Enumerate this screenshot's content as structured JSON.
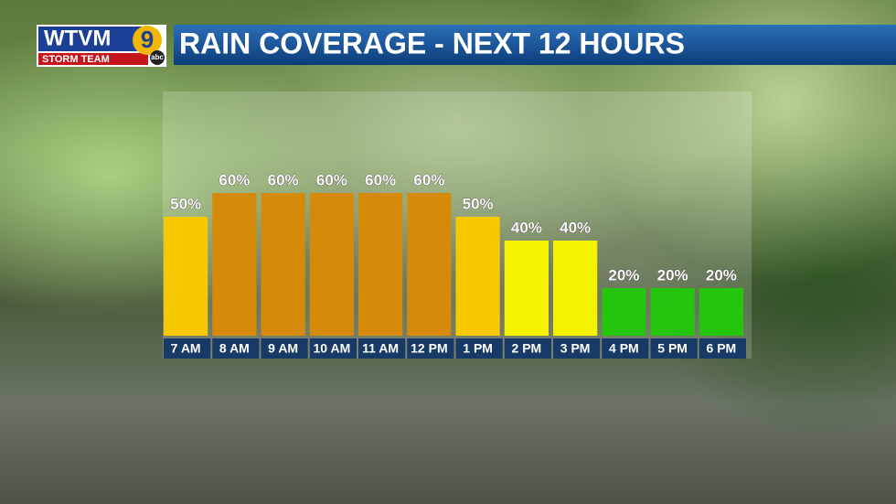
{
  "logo": {
    "station": "WTVM",
    "channel": "9",
    "network": "abc",
    "team": "STORM TEAM"
  },
  "chart_data": {
    "type": "bar",
    "title": "RAIN COVERAGE - NEXT 12 HOURS",
    "categories": [
      "7 AM",
      "8 AM",
      "9 AM",
      "10 AM",
      "11 AM",
      "12 PM",
      "1 PM",
      "2 PM",
      "3 PM",
      "4 PM",
      "5 PM",
      "6 PM"
    ],
    "values": [
      50,
      60,
      60,
      60,
      60,
      60,
      50,
      40,
      40,
      20,
      20,
      20
    ],
    "value_labels": [
      "50%",
      "60%",
      "60%",
      "60%",
      "60%",
      "60%",
      "50%",
      "40%",
      "40%",
      "20%",
      "20%",
      "20%"
    ],
    "colors": [
      "#f7c800",
      "#d58a0a",
      "#d58a0a",
      "#d58a0a",
      "#d58a0a",
      "#d58a0a",
      "#f7c800",
      "#f5f200",
      "#f5f200",
      "#25c40d",
      "#25c40d",
      "#25c40d"
    ],
    "ylim": [
      0,
      100
    ]
  }
}
